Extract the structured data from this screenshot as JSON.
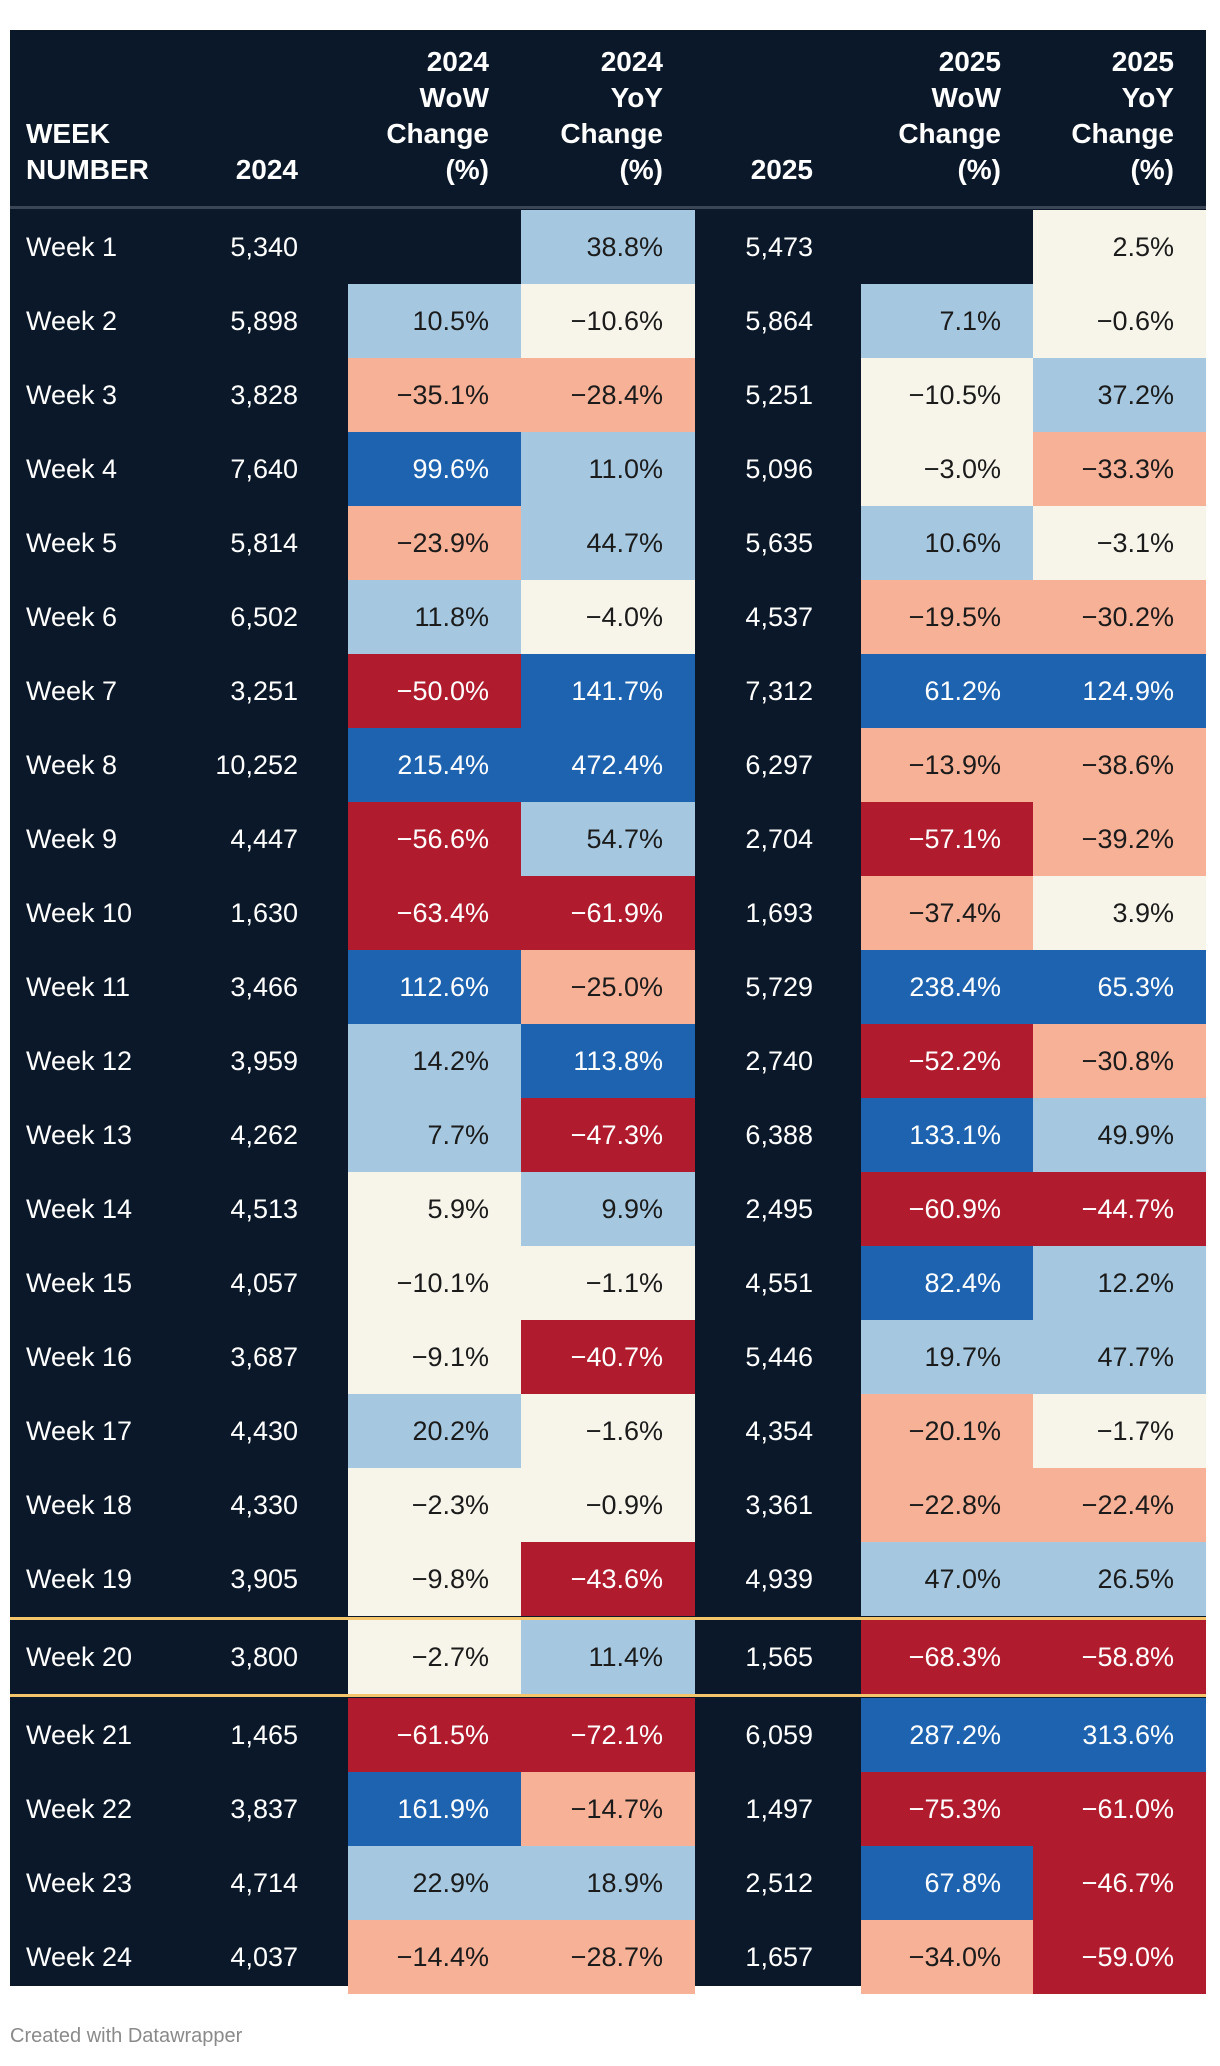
{
  "chart_data": {
    "type": "table",
    "columns": [
      "WEEK\nNUMBER",
      "2024",
      "2024\nWoW\nChange\n(%)",
      "2024\nYoY\nChange\n(%)",
      "2025",
      "2025\nWoW\nChange\n(%)",
      "2025\nYoY\nChange\n(%)"
    ],
    "rows": [
      {
        "week": "Week 1",
        "v2024": "5,340",
        "wow2024": "",
        "yoy2024": "38.8%",
        "v2025": "5,473",
        "wow2025": "",
        "yoy2025": "2.5%"
      },
      {
        "week": "Week 2",
        "v2024": "5,898",
        "wow2024": "10.5%",
        "yoy2024": "−10.6%",
        "v2025": "5,864",
        "wow2025": "7.1%",
        "yoy2025": "−0.6%"
      },
      {
        "week": "Week 3",
        "v2024": "3,828",
        "wow2024": "−35.1%",
        "yoy2024": "−28.4%",
        "v2025": "5,251",
        "wow2025": "−10.5%",
        "yoy2025": "37.2%"
      },
      {
        "week": "Week 4",
        "v2024": "7,640",
        "wow2024": "99.6%",
        "yoy2024": "11.0%",
        "v2025": "5,096",
        "wow2025": "−3.0%",
        "yoy2025": "−33.3%"
      },
      {
        "week": "Week 5",
        "v2024": "5,814",
        "wow2024": "−23.9%",
        "yoy2024": "44.7%",
        "v2025": "5,635",
        "wow2025": "10.6%",
        "yoy2025": "−3.1%"
      },
      {
        "week": "Week 6",
        "v2024": "6,502",
        "wow2024": "11.8%",
        "yoy2024": "−4.0%",
        "v2025": "4,537",
        "wow2025": "−19.5%",
        "yoy2025": "−30.2%"
      },
      {
        "week": "Week 7",
        "v2024": "3,251",
        "wow2024": "−50.0%",
        "yoy2024": "141.7%",
        "v2025": "7,312",
        "wow2025": "61.2%",
        "yoy2025": "124.9%"
      },
      {
        "week": "Week 8",
        "v2024": "10,252",
        "wow2024": "215.4%",
        "yoy2024": "472.4%",
        "v2025": "6,297",
        "wow2025": "−13.9%",
        "yoy2025": "−38.6%"
      },
      {
        "week": "Week 9",
        "v2024": "4,447",
        "wow2024": "−56.6%",
        "yoy2024": "54.7%",
        "v2025": "2,704",
        "wow2025": "−57.1%",
        "yoy2025": "−39.2%"
      },
      {
        "week": "Week 10",
        "v2024": "1,630",
        "wow2024": "−63.4%",
        "yoy2024": "−61.9%",
        "v2025": "1,693",
        "wow2025": "−37.4%",
        "yoy2025": "3.9%"
      },
      {
        "week": "Week 11",
        "v2024": "3,466",
        "wow2024": "112.6%",
        "yoy2024": "−25.0%",
        "v2025": "5,729",
        "wow2025": "238.4%",
        "yoy2025": "65.3%"
      },
      {
        "week": "Week 12",
        "v2024": "3,959",
        "wow2024": "14.2%",
        "yoy2024": "113.8%",
        "v2025": "2,740",
        "wow2025": "−52.2%",
        "yoy2025": "−30.8%"
      },
      {
        "week": "Week 13",
        "v2024": "4,262",
        "wow2024": "7.7%",
        "yoy2024": "−47.3%",
        "v2025": "6,388",
        "wow2025": "133.1%",
        "yoy2025": "49.9%"
      },
      {
        "week": "Week 14",
        "v2024": "4,513",
        "wow2024": "5.9%",
        "yoy2024": "9.9%",
        "v2025": "2,495",
        "wow2025": "−60.9%",
        "yoy2025": "−44.7%"
      },
      {
        "week": "Week 15",
        "v2024": "4,057",
        "wow2024": "−10.1%",
        "yoy2024": "−1.1%",
        "v2025": "4,551",
        "wow2025": "82.4%",
        "yoy2025": "12.2%"
      },
      {
        "week": "Week 16",
        "v2024": "3,687",
        "wow2024": "−9.1%",
        "yoy2024": "−40.7%",
        "v2025": "5,446",
        "wow2025": "19.7%",
        "yoy2025": "47.7%"
      },
      {
        "week": "Week 17",
        "v2024": "4,430",
        "wow2024": "20.2%",
        "yoy2024": "−1.6%",
        "v2025": "4,354",
        "wow2025": "−20.1%",
        "yoy2025": "−1.7%"
      },
      {
        "week": "Week 18",
        "v2024": "4,330",
        "wow2024": "−2.3%",
        "yoy2024": "−0.9%",
        "v2025": "3,361",
        "wow2025": "−22.8%",
        "yoy2025": "−22.4%"
      },
      {
        "week": "Week 19",
        "v2024": "3,905",
        "wow2024": "−9.8%",
        "yoy2024": "−43.6%",
        "v2025": "4,939",
        "wow2025": "47.0%",
        "yoy2025": "26.5%"
      },
      {
        "week": "Week 20",
        "v2024": "3,800",
        "wow2024": "−2.7%",
        "yoy2024": "11.4%",
        "v2025": "1,565",
        "wow2025": "−68.3%",
        "yoy2025": "−58.8%",
        "highlight": true
      },
      {
        "week": "Week 21",
        "v2024": "1,465",
        "wow2024": "−61.5%",
        "yoy2024": "−72.1%",
        "v2025": "6,059",
        "wow2025": "287.2%",
        "yoy2025": "313.6%"
      },
      {
        "week": "Week 22",
        "v2024": "3,837",
        "wow2024": "161.9%",
        "yoy2024": "−14.7%",
        "v2025": "1,497",
        "wow2025": "−75.3%",
        "yoy2025": "−61.0%"
      },
      {
        "week": "Week 23",
        "v2024": "4,714",
        "wow2024": "22.9%",
        "yoy2024": "18.9%",
        "v2025": "2,512",
        "wow2025": "67.8%",
        "yoy2025": "−46.7%"
      },
      {
        "week": "Week 24",
        "v2024": "4,037",
        "wow2024": "−14.4%",
        "yoy2024": "−28.7%",
        "v2025": "1,657",
        "wow2025": "−34.0%",
        "yoy2025": "−59.0%"
      }
    ],
    "color_scale": {
      "strong_negative": "#b01c2e",
      "negative": "#f6b196",
      "neutral": "#f7f5ea",
      "positive": "#a5c8e0",
      "strong_positive": "#1e63b0",
      "background": "#0b1829",
      "highlight_line": "#f5c56b"
    }
  },
  "footer": "Created with Datawrapper"
}
